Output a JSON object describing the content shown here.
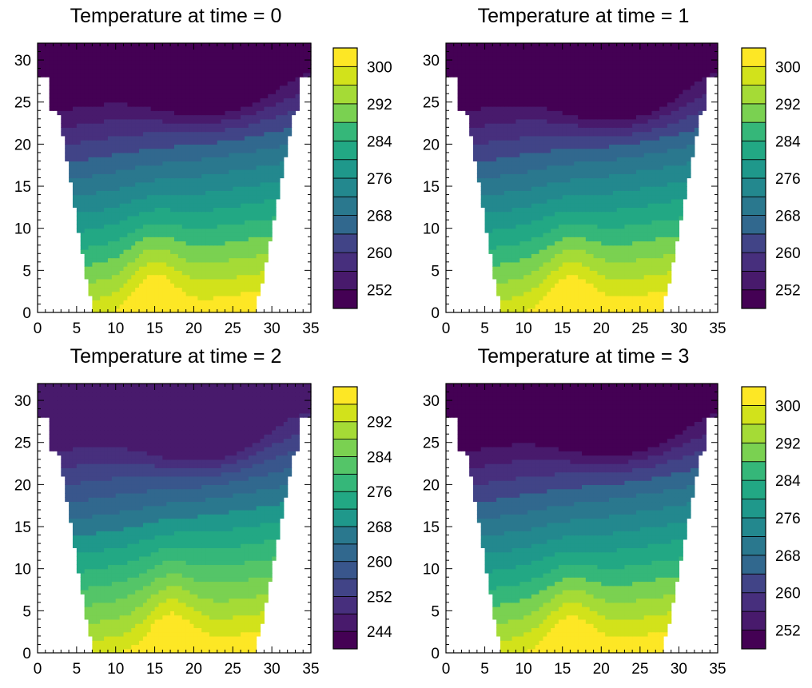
{
  "figure": {
    "layout": "2x2 grid of filled contour panels"
  },
  "chart_data": [
    {
      "type": "heatmap",
      "title": "Temperature at time = 0",
      "xlim": [
        0,
        35
      ],
      "ylim": [
        0,
        32
      ],
      "x_ticks": [
        0,
        5,
        10,
        15,
        20,
        25,
        30,
        35
      ],
      "y_ticks": [
        0,
        5,
        10,
        15,
        20,
        25,
        30
      ],
      "x_tick_labels": [
        "0",
        "5",
        "10",
        "15",
        "20",
        "25",
        "30",
        "35"
      ],
      "y_tick_labels": [
        "0",
        "5",
        "10",
        "15",
        "20",
        "25",
        "30"
      ],
      "colorbar": {
        "levels_min": 248,
        "levels_max": 304,
        "step": 4,
        "labels": [
          "300",
          "292",
          "284",
          "276",
          "268",
          "260",
          "252"
        ]
      },
      "field": {
        "cold_core": [
          22,
          28
        ],
        "cold_value": 248,
        "warm_core": [
          15,
          2
        ],
        "warm_value": 302,
        "boundary_slope": 0.12
      }
    },
    {
      "type": "heatmap",
      "title": "Temperature at time = 1",
      "xlim": [
        0,
        35
      ],
      "ylim": [
        0,
        32
      ],
      "x_ticks": [
        0,
        5,
        10,
        15,
        20,
        25,
        30,
        35
      ],
      "y_ticks": [
        0,
        5,
        10,
        15,
        20,
        25,
        30
      ],
      "x_tick_labels": [
        "0",
        "5",
        "10",
        "15",
        "20",
        "25",
        "30",
        "35"
      ],
      "y_tick_labels": [
        "0",
        "5",
        "10",
        "15",
        "20",
        "25",
        "30"
      ],
      "colorbar": {
        "levels_min": 248,
        "levels_max": 304,
        "step": 4,
        "labels": [
          "300",
          "292",
          "284",
          "276",
          "268",
          "260",
          "252"
        ]
      },
      "field": {
        "cold_core": [
          22,
          27
        ],
        "cold_value": 248,
        "warm_core": [
          16,
          1
        ],
        "warm_value": 302,
        "boundary_slope": 0.12
      }
    },
    {
      "type": "heatmap",
      "title": "Temperature at time = 2",
      "xlim": [
        0,
        35
      ],
      "ylim": [
        0,
        32
      ],
      "x_ticks": [
        0,
        5,
        10,
        15,
        20,
        25,
        30,
        35
      ],
      "y_ticks": [
        0,
        5,
        10,
        15,
        20,
        25,
        30
      ],
      "x_tick_labels": [
        "0",
        "5",
        "10",
        "15",
        "20",
        "25",
        "30",
        "35"
      ],
      "y_tick_labels": [
        "0",
        "5",
        "10",
        "15",
        "20",
        "25",
        "30"
      ],
      "colorbar": {
        "levels_min": 240,
        "levels_max": 300,
        "step": 4,
        "labels": [
          "292",
          "284",
          "276",
          "268",
          "260",
          "252",
          "244"
        ]
      },
      "field": {
        "cold_core": [
          21,
          27
        ],
        "cold_value": 244,
        "warm_core": [
          17,
          2
        ],
        "warm_value": 298,
        "boundary_slope": 0.12
      }
    },
    {
      "type": "heatmap",
      "title": "Temperature at time = 3",
      "xlim": [
        0,
        35
      ],
      "ylim": [
        0,
        32
      ],
      "x_ticks": [
        0,
        5,
        10,
        15,
        20,
        25,
        30,
        35
      ],
      "y_ticks": [
        0,
        5,
        10,
        15,
        20,
        25,
        30
      ],
      "x_tick_labels": [
        "0",
        "5",
        "10",
        "15",
        "20",
        "25",
        "30",
        "35"
      ],
      "y_tick_labels": [
        "0",
        "5",
        "10",
        "15",
        "20",
        "25",
        "30"
      ],
      "colorbar": {
        "levels_min": 248,
        "levels_max": 304,
        "step": 4,
        "labels": [
          "300",
          "292",
          "284",
          "276",
          "268",
          "260",
          "252"
        ]
      },
      "field": {
        "cold_core": [
          22,
          28
        ],
        "cold_value": 248,
        "warm_core": [
          16,
          1
        ],
        "warm_value": 302,
        "boundary_slope": 0.12
      }
    }
  ],
  "palette": [
    "#440154",
    "#481a6c",
    "#472f7d",
    "#414487",
    "#39568c",
    "#31688e",
    "#2a788e",
    "#23888e",
    "#1f988b",
    "#22a884",
    "#35b779",
    "#54c568",
    "#7ad151",
    "#a5db36",
    "#d2e21b",
    "#fde725"
  ]
}
